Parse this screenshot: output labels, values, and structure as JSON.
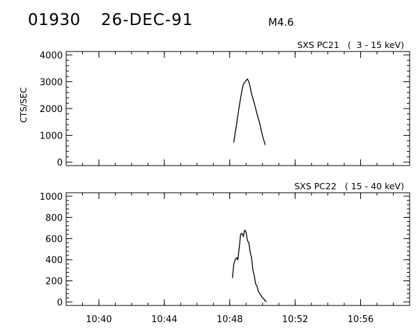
{
  "header": {
    "event_id": "01930",
    "date": "26-DEC-91",
    "flare_class": "M4.6"
  },
  "chart_data": [
    {
      "type": "line",
      "title": "SXS PC21   (  3 - 15 keV)",
      "ylabel": "CTS/SEC",
      "xlabel": "",
      "xlim": [
        "10:38",
        "10:59"
      ],
      "ylim": [
        0,
        4000
      ],
      "yticks": [
        0,
        1000,
        2000,
        3000,
        4000
      ],
      "xticks": [
        "10:40",
        "10:44",
        "10:48",
        "10:52",
        "10:56"
      ],
      "series": [
        {
          "x": [
            "10:48:15",
            "10:48:25",
            "10:48:35",
            "10:48:45",
            "10:48:50",
            "10:49:00",
            "10:49:05",
            "10:49:10",
            "10:49:15",
            "10:49:20",
            "10:49:30",
            "10:49:40",
            "10:49:50",
            "10:50:00",
            "10:50:10"
          ],
          "values": [
            750,
            1400,
            2100,
            2700,
            2900,
            3050,
            3100,
            3000,
            2800,
            2550,
            2200,
            1800,
            1450,
            1000,
            650
          ]
        }
      ]
    },
    {
      "type": "line",
      "title": "SXS PC22   ( 15 - 40 keV)",
      "ylabel": "",
      "xlabel": "",
      "xlim": [
        "10:38",
        "10:59"
      ],
      "ylim": [
        0,
        1000
      ],
      "yticks": [
        0,
        200,
        400,
        600,
        800,
        1000
      ],
      "xticks": [
        "10:40",
        "10:44",
        "10:48",
        "10:52",
        "10:56"
      ],
      "series": [
        {
          "x": [
            "10:48:10",
            "10:48:15",
            "10:48:20",
            "10:48:25",
            "10:48:30",
            "10:48:35",
            "10:48:40",
            "10:48:45",
            "10:48:50",
            "10:48:55",
            "10:49:00",
            "10:49:05",
            "10:49:10",
            "10:49:15",
            "10:49:20",
            "10:49:25",
            "10:49:30",
            "10:49:35",
            "10:49:40",
            "10:49:45",
            "10:49:50",
            "10:49:55",
            "10:50:00",
            "10:50:05",
            "10:50:10",
            "10:50:15"
          ],
          "values": [
            230,
            360,
            400,
            420,
            400,
            520,
            640,
            650,
            620,
            680,
            660,
            580,
            560,
            470,
            420,
            300,
            250,
            170,
            150,
            100,
            80,
            60,
            40,
            30,
            10,
            5
          ]
        }
      ]
    }
  ]
}
